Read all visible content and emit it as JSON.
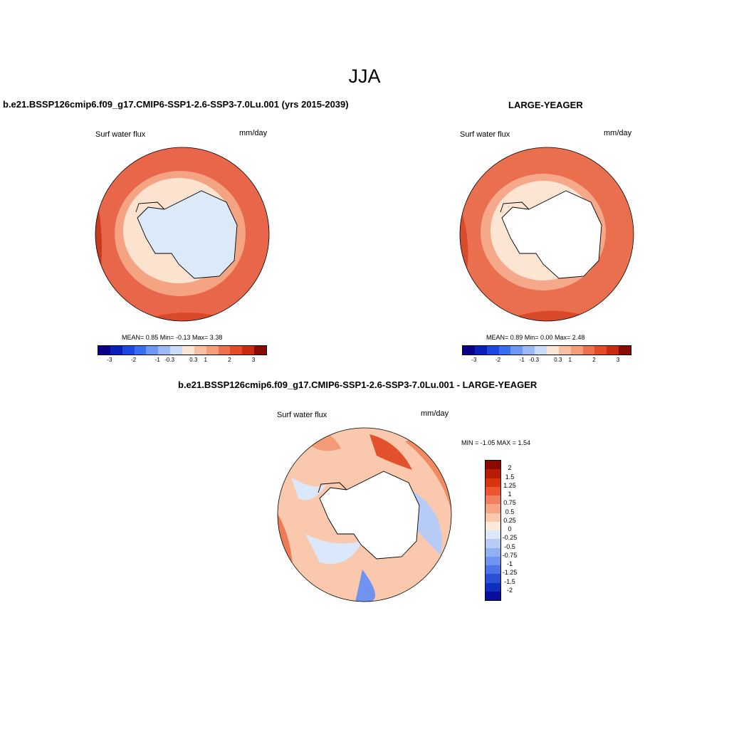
{
  "title": "JJA",
  "panels": [
    {
      "title": "b.e21.BSSP126cmip6.f09_g17.CMIP6-SSP1-2.6-SSP3-7.0Lu.001 (yrs 2015-2039)",
      "variable": "Surf water flux",
      "units": "mm/day",
      "stats": "MEAN=   0.85  Min=  -0.13  Max=   3.38"
    },
    {
      "title": "LARGE-YEAGER",
      "variable": "Surf water flux",
      "units": "mm/day",
      "stats": "MEAN=   0.89  Min=   0.00  Max=   2.48"
    }
  ],
  "diff_panel": {
    "title": "b.e21.BSSP126cmip6.f09_g17.CMIP6-SSP1-2.6-SSP3-7.0Lu.001 - LARGE-YEAGER",
    "variable": "Surf water flux",
    "units": "mm/day",
    "minmax": "MIN =  -1.05 MAX =   1.54"
  },
  "colorbar_horizontal": {
    "colors": [
      "#08008a",
      "#0a1fb8",
      "#1f47e0",
      "#3a6ef0",
      "#6d97f2",
      "#9cb9f4",
      "#c9dbf7",
      "#fce5d2",
      "#f8c0a0",
      "#f49e7c",
      "#ef7050",
      "#e54a28",
      "#c82b10",
      "#8a0a00"
    ],
    "ticks": [
      "-3",
      "-2",
      "-1",
      "-0.3",
      "0.3",
      "1",
      "2",
      "3"
    ]
  },
  "colorbar_vertical": {
    "colors": [
      "#8a0a00",
      "#b81c05",
      "#d8340d",
      "#eb5530",
      "#f2805e",
      "#f6a486",
      "#f9c8ad",
      "#fde9d9",
      "#dbe7fa",
      "#b6ccf6",
      "#91b0f2",
      "#6f93ee",
      "#4c74e6",
      "#2950d6",
      "#0e2ebe",
      "#0a0f9a"
    ],
    "ticks": [
      "2",
      "1.5",
      "1.25",
      "1",
      "0.75",
      "0.5",
      "0.25",
      "0",
      "-0.25",
      "-0.5",
      "-0.75",
      "-1",
      "-1.25",
      "-1.5",
      "-2"
    ]
  }
}
